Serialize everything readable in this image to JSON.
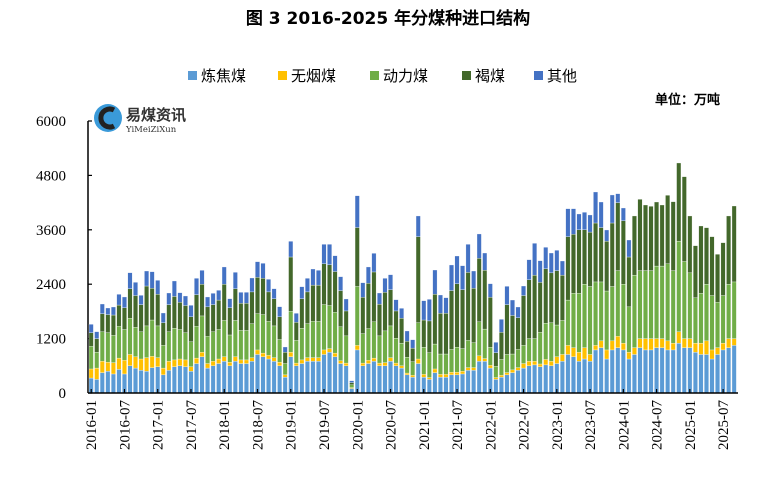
{
  "chart_data": {
    "type": "bar",
    "stacked": true,
    "title": "图 3 2016-2025 年分煤种进口结构",
    "unit": "单位：万吨",
    "watermark": {
      "name": "易煤资讯",
      "sub": "YiMeiZiXun"
    },
    "ylim": [
      0,
      6000
    ],
    "yticks": [
      0,
      1200,
      2400,
      3600,
      4800,
      6000
    ],
    "xtick_labels": [
      "2016-01",
      "2016-07",
      "2017-01",
      "2017-07",
      "2018-01",
      "2018-07",
      "2019-01",
      "2019-07",
      "2020-01",
      "2020-07",
      "2021-01",
      "2021-07",
      "2022-01",
      "2022-07",
      "2023-01",
      "2023-07",
      "2024-01",
      "2024-07",
      "2025-01",
      "2025-07"
    ],
    "legend_position": "top-center",
    "start_month": "2016-01",
    "end_month": "2025-09",
    "series": [
      {
        "name": "炼焦煤",
        "color": "#5B9BD5",
        "values": [
          330,
          300,
          450,
          480,
          420,
          520,
          420,
          600,
          550,
          500,
          480,
          560,
          580,
          400,
          500,
          580,
          600,
          580,
          480,
          650,
          800,
          550,
          600,
          650,
          700,
          600,
          700,
          650,
          650,
          700,
          850,
          800,
          750,
          700,
          600,
          350,
          800,
          600,
          650,
          700,
          700,
          700,
          850,
          900,
          800,
          650,
          600,
          100,
          950,
          600,
          650,
          700,
          600,
          600,
          700,
          600,
          550,
          400,
          350,
          650,
          350,
          300,
          450,
          350,
          350,
          400,
          400,
          420,
          500,
          500,
          700,
          700,
          550,
          300,
          350,
          400,
          450,
          500,
          550,
          600,
          620,
          580,
          620,
          600,
          650,
          700,
          850,
          800,
          700,
          750,
          700,
          950,
          1000,
          750,
          950,
          1000,
          950,
          750,
          850,
          1000,
          950,
          950,
          1000,
          1000,
          950,
          950,
          1100,
          1000,
          1000,
          900,
          850,
          850,
          750,
          850,
          950,
          1000,
          1050
        ]
      },
      {
        "name": "无烟煤",
        "color": "#FFC000",
        "values": [
          200,
          250,
          250,
          200,
          250,
          250,
          300,
          250,
          250,
          250,
          300,
          250,
          200,
          150,
          200,
          150,
          150,
          150,
          100,
          120,
          100,
          100,
          100,
          100,
          100,
          80,
          100,
          80,
          80,
          80,
          100,
          80,
          80,
          80,
          80,
          50,
          100,
          60,
          80,
          80,
          80,
          80,
          100,
          80,
          80,
          60,
          60,
          20,
          100,
          60,
          70,
          70,
          60,
          70,
          80,
          60,
          50,
          40,
          40,
          100,
          60,
          40,
          80,
          60,
          60,
          60,
          60,
          60,
          60,
          60,
          120,
          60,
          60,
          40,
          40,
          50,
          60,
          60,
          100,
          100,
          80,
          60,
          120,
          100,
          150,
          150,
          200,
          200,
          200,
          250,
          150,
          100,
          150,
          200,
          200,
          250,
          150,
          150,
          150,
          200,
          250,
          250,
          200,
          200,
          200,
          150,
          250,
          200,
          200,
          200,
          250,
          300,
          200,
          150,
          150,
          200,
          150
        ]
      },
      {
        "name": "动力煤",
        "color": "#70AD47",
        "values": [
          500,
          350,
          650,
          650,
          600,
          700,
          680,
          800,
          650,
          600,
          700,
          800,
          700,
          500,
          650,
          700,
          650,
          600,
          550,
          700,
          800,
          600,
          650,
          650,
          800,
          600,
          800,
          650,
          650,
          750,
          800,
          850,
          750,
          700,
          500,
          250,
          900,
          500,
          700,
          750,
          800,
          800,
          1000,
          950,
          900,
          750,
          600,
          60,
          1300,
          650,
          700,
          800,
          600,
          700,
          700,
          550,
          500,
          350,
          300,
          800,
          600,
          550,
          550,
          450,
          450,
          500,
          550,
          500,
          600,
          550,
          750,
          650,
          400,
          250,
          350,
          400,
          350,
          400,
          400,
          500,
          500,
          700,
          800,
          850,
          700,
          750,
          1000,
          1200,
          1300,
          1400,
          1500,
          1400,
          1300,
          1300,
          1200,
          1450,
          1300,
          1000,
          1600,
          1500,
          1500,
          1500,
          1600,
          1600,
          1700,
          1600,
          2000,
          1700,
          1450,
          1000,
          1100,
          1250,
          1200,
          1000,
          1050,
          1200,
          1250
        ]
      },
      {
        "name": "褐煤",
        "color": "#43682B",
        "values": [
          300,
          300,
          400,
          400,
          450,
          470,
          480,
          650,
          700,
          600,
          880,
          700,
          700,
          500,
          600,
          700,
          600,
          600,
          550,
          700,
          700,
          650,
          600,
          650,
          800,
          600,
          700,
          600,
          600,
          700,
          800,
          800,
          650,
          600,
          500,
          250,
          1200,
          400,
          650,
          700,
          800,
          800,
          900,
          900,
          900,
          800,
          550,
          50,
          1300,
          800,
          1000,
          1100,
          700,
          850,
          800,
          600,
          550,
          350,
          300,
          1900,
          600,
          700,
          1100,
          900,
          900,
          1300,
          1400,
          1300,
          1500,
          1200,
          1400,
          1300,
          1100,
          300,
          600,
          1100,
          850,
          700,
          1100,
          1300,
          1400,
          1100,
          1200,
          1100,
          1200,
          1000,
          1400,
          1300,
          1400,
          1200,
          1200,
          1300,
          1200,
          1100,
          1400,
          1500,
          1400,
          1100,
          1305,
          1572,
          1447,
          1418,
          1413,
          1347,
          1511,
          1520,
          1724,
          1872,
          1255,
          1150,
          1484,
          1247,
          1299,
          1060,
          1166,
          1505,
          1675
        ]
      },
      {
        "name": "其他",
        "color": "#4472C4",
        "values": [
          185,
          153,
          213,
          145,
          177,
          237,
          238,
          354,
          291,
          204,
          331,
          366,
          305,
          215,
          256,
          341,
          213,
          210,
          254,
          360,
          306,
          218,
          249,
          215,
          380,
          201,
          362,
          241,
          241,
          307,
          347,
          331,
          278,
          221,
          224,
          115,
          346,
          198,
          265,
          300,
          355,
          326,
          430,
          450,
          349,
          306,
          264,
          41,
          702,
          323,
          360,
          411,
          246,
          310,
          330,
          249,
          218,
          228,
          186,
          455,
          427,
          476,
          533,
          402,
          343,
          564,
          612,
          529,
          620,
          381,
          538,
          378,
          302,
          228,
          285,
          403,
          341,
          237,
          210,
          441,
          702,
          479,
          474,
          438,
          448,
          312,
          616,
          566,
          349,
          386,
          377,
          684,
          563,
          246,
          618,
          197,
          281,
          375,
          0,
          0,
          0,
          0,
          0,
          0,
          0,
          0,
          0,
          0,
          0,
          0,
          0,
          0,
          0,
          0,
          0,
          0,
          0
        ]
      }
    ]
  }
}
